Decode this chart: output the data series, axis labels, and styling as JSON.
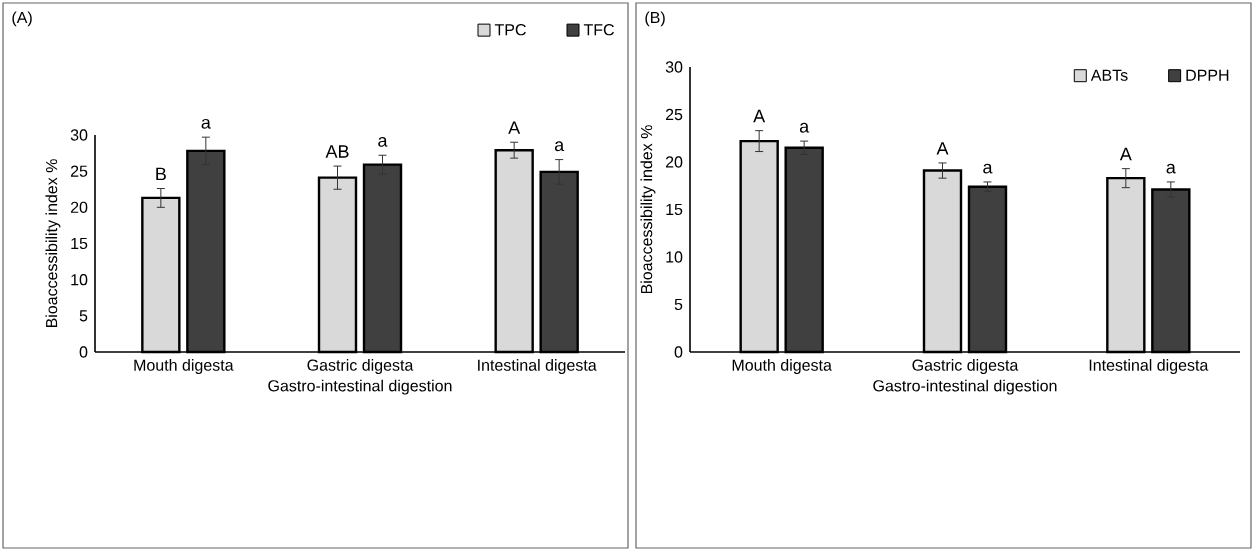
{
  "chart_data": [
    {
      "type": "bar",
      "title": "(A)",
      "xlabel": "Gastro-intestinal digestion",
      "ylabel": "Bioaccessibility index %",
      "categories": [
        "Mouth digesta",
        "Gastric digesta",
        "Intestinal digesta"
      ],
      "series": [
        {
          "name": "TPC",
          "color": "#d9d9d9",
          "values": [
            21.3,
            24.1,
            27.9
          ],
          "errors": [
            1.3,
            1.6,
            1.1
          ]
        },
        {
          "name": "TFC",
          "color": "#404040",
          "values": [
            27.8,
            25.9,
            24.9
          ],
          "errors": [
            1.9,
            1.3,
            1.7
          ]
        }
      ],
      "ylim": [
        0,
        30
      ],
      "yticks": [
        0,
        5,
        10,
        15,
        20,
        25,
        30
      ],
      "legend": "top right",
      "grid": false,
      "annotations": [
        "B",
        "a",
        "AB",
        "a",
        "A",
        "a"
      ]
    },
    {
      "type": "bar",
      "title": "(B)",
      "xlabel": "Gastro-intestinal digestion",
      "ylabel": "Bioaccessibility index %",
      "categories": [
        "Mouth digesta",
        "Gastric digesta",
        "Intestinal digesta"
      ],
      "series": [
        {
          "name": "ABTs",
          "color": "#d9d9d9",
          "values": [
            22.2,
            19.1,
            18.3
          ],
          "errors": [
            1.1,
            0.8,
            1.0
          ]
        },
        {
          "name": "DPPH",
          "color": "#404040",
          "values": [
            21.5,
            17.4,
            17.1
          ],
          "errors": [
            0.7,
            0.5,
            0.8
          ]
        }
      ],
      "ylim": [
        0,
        30
      ],
      "yticks": [
        0,
        5,
        10,
        15,
        20,
        25,
        30
      ],
      "legend": "top right",
      "grid": false,
      "annotations": [
        "A",
        "a",
        "A",
        "a",
        "A",
        "a"
      ]
    }
  ]
}
